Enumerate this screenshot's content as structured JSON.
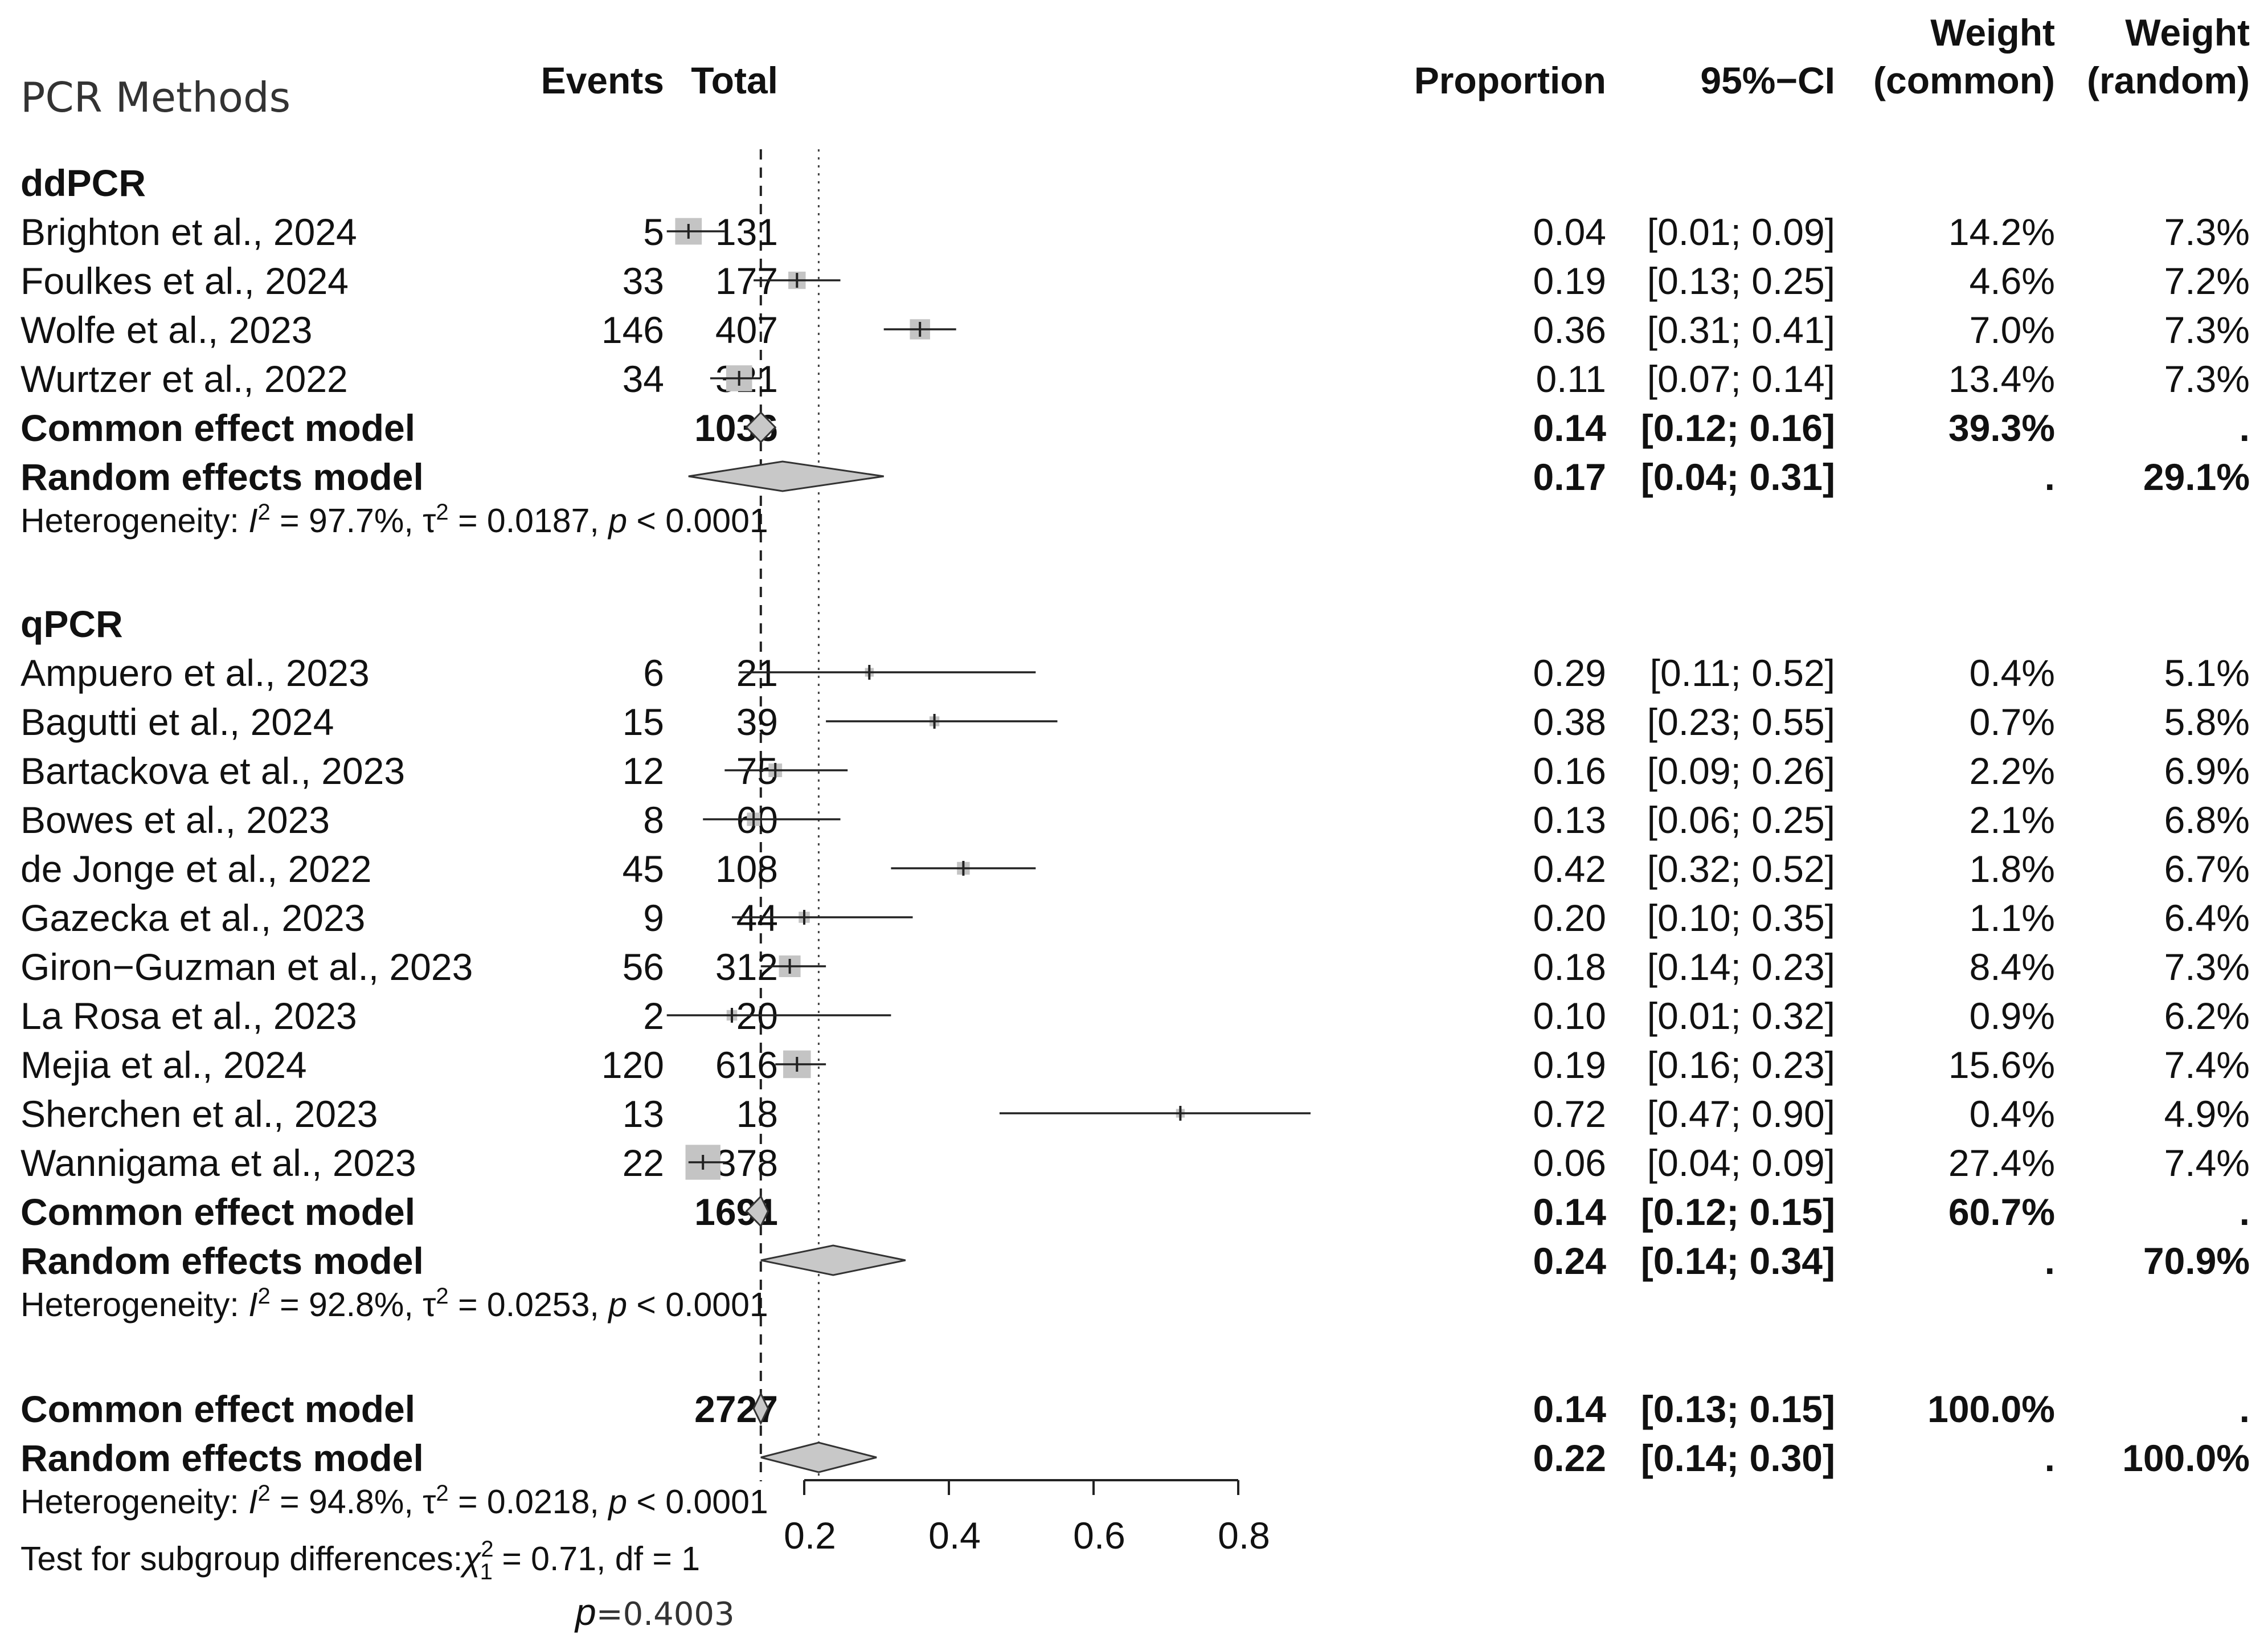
{
  "chart_data": {
    "type": "forest",
    "title": "PCR Methods",
    "columns": {
      "events": "Events",
      "total": "Total",
      "proportion": "Proportion",
      "ci": "95%−CI",
      "weight_common_1": "Weight",
      "weight_common_2": "(common)",
      "weight_random_1": "Weight",
      "weight_random_2": "(random)"
    },
    "xaxis": {
      "min": 0.2,
      "max": 0.8,
      "ticks": [
        "0.2",
        "0.4",
        "0.6",
        "0.8"
      ],
      "tick_values": [
        0.2,
        0.4,
        0.6,
        0.8
      ]
    },
    "reference_lines": {
      "common": 0.14,
      "random": 0.22
    },
    "subgroups": [
      {
        "name": "ddPCR",
        "studies": [
          {
            "study": "Brighton et al., 2024",
            "events": "5",
            "total": "131",
            "est": 0.04,
            "lo": 0.01,
            "hi": 0.09,
            "prop": "0.04",
            "ci": "[0.01; 0.09]",
            "wc": "14.2%",
            "wr": "7.3%",
            "wc_val": 14.2
          },
          {
            "study": "Foulkes et al., 2024",
            "events": "33",
            "total": "177",
            "est": 0.19,
            "lo": 0.13,
            "hi": 0.25,
            "prop": "0.19",
            "ci": "[0.13; 0.25]",
            "wc": "4.6%",
            "wr": "7.2%",
            "wc_val": 4.6
          },
          {
            "study": "Wolfe et al., 2023",
            "events": "146",
            "total": "407",
            "est": 0.36,
            "lo": 0.31,
            "hi": 0.41,
            "prop": "0.36",
            "ci": "[0.31; 0.41]",
            "wc": "7.0%",
            "wr": "7.3%",
            "wc_val": 7.0
          },
          {
            "study": "Wurtzer et al., 2022",
            "events": "34",
            "total": "321",
            "est": 0.11,
            "lo": 0.07,
            "hi": 0.14,
            "prop": "0.11",
            "ci": "[0.07; 0.14]",
            "wc": "13.4%",
            "wr": "7.3%",
            "wc_val": 13.4
          }
        ],
        "common": {
          "label": "Common effect model",
          "total": "1036",
          "est": 0.14,
          "lo": 0.12,
          "hi": 0.16,
          "prop": "0.14",
          "ci": "[0.12; 0.16]",
          "wc": "39.3%",
          "wr": "."
        },
        "random": {
          "label": "Random effects model",
          "est": 0.17,
          "lo": 0.04,
          "hi": 0.31,
          "prop": "0.17",
          "ci": "[0.04; 0.31]",
          "wc": ".",
          "wr": "29.1%"
        },
        "het": {
          "prefix": "Heterogeneity: ",
          "i2": "97.7%",
          "tau2": "0.0187",
          "p": "< 0.0001"
        }
      },
      {
        "name": "qPCR",
        "studies": [
          {
            "study": "Ampuero et al., 2023",
            "events": "6",
            "total": "21",
            "est": 0.29,
            "lo": 0.11,
            "hi": 0.52,
            "prop": "0.29",
            "ci": "[0.11; 0.52]",
            "wc": "0.4%",
            "wr": "5.1%",
            "wc_val": 0.4
          },
          {
            "study": "Bagutti et al., 2024",
            "events": "15",
            "total": "39",
            "est": 0.38,
            "lo": 0.23,
            "hi": 0.55,
            "prop": "0.38",
            "ci": "[0.23; 0.55]",
            "wc": "0.7%",
            "wr": "5.8%",
            "wc_val": 0.7
          },
          {
            "study": "Bartackova et al., 2023",
            "events": "12",
            "total": "75",
            "est": 0.16,
            "lo": 0.09,
            "hi": 0.26,
            "prop": "0.16",
            "ci": "[0.09; 0.26]",
            "wc": "2.2%",
            "wr": "6.9%",
            "wc_val": 2.2
          },
          {
            "study": "Bowes et al., 2023",
            "events": "8",
            "total": "60",
            "est": 0.13,
            "lo": 0.06,
            "hi": 0.25,
            "prop": "0.13",
            "ci": "[0.06; 0.25]",
            "wc": "2.1%",
            "wr": "6.8%",
            "wc_val": 2.1
          },
          {
            "study": "de Jonge et al., 2022",
            "events": "45",
            "total": "108",
            "est": 0.42,
            "lo": 0.32,
            "hi": 0.52,
            "prop": "0.42",
            "ci": "[0.32; 0.52]",
            "wc": "1.8%",
            "wr": "6.7%",
            "wc_val": 1.8
          },
          {
            "study": "Gazecka et al., 2023",
            "events": "9",
            "total": "44",
            "est": 0.2,
            "lo": 0.1,
            "hi": 0.35,
            "prop": "0.20",
            "ci": "[0.10; 0.35]",
            "wc": "1.1%",
            "wr": "6.4%",
            "wc_val": 1.1
          },
          {
            "study": "Giron−Guzman et al., 2023",
            "events": "56",
            "total": "312",
            "est": 0.18,
            "lo": 0.14,
            "hi": 0.23,
            "prop": "0.18",
            "ci": "[0.14; 0.23]",
            "wc": "8.4%",
            "wr": "7.3%",
            "wc_val": 8.4
          },
          {
            "study": "La Rosa et al., 2023",
            "events": "2",
            "total": "20",
            "est": 0.1,
            "lo": 0.01,
            "hi": 0.32,
            "prop": "0.10",
            "ci": "[0.01; 0.32]",
            "wc": "0.9%",
            "wr": "6.2%",
            "wc_val": 0.9
          },
          {
            "study": "Mejia et al., 2024",
            "events": "120",
            "total": "616",
            "est": 0.19,
            "lo": 0.16,
            "hi": 0.23,
            "prop": "0.19",
            "ci": "[0.16; 0.23]",
            "wc": "15.6%",
            "wr": "7.4%",
            "wc_val": 15.6
          },
          {
            "study": "Sherchen et al., 2023",
            "events": "13",
            "total": "18",
            "est": 0.72,
            "lo": 0.47,
            "hi": 0.9,
            "prop": "0.72",
            "ci": "[0.47; 0.90]",
            "wc": "0.4%",
            "wr": "4.9%",
            "wc_val": 0.4
          },
          {
            "study": "Wannigama et al., 2023",
            "events": "22",
            "total": "378",
            "est": 0.06,
            "lo": 0.04,
            "hi": 0.09,
            "prop": "0.06",
            "ci": "[0.04; 0.09]",
            "wc": "27.4%",
            "wr": "7.4%",
            "wc_val": 27.4
          }
        ],
        "common": {
          "label": "Common effect model",
          "total": "1691",
          "est": 0.14,
          "lo": 0.12,
          "hi": 0.15,
          "prop": "0.14",
          "ci": "[0.12; 0.15]",
          "wc": "60.7%",
          "wr": "."
        },
        "random": {
          "label": "Random effects model",
          "est": 0.24,
          "lo": 0.14,
          "hi": 0.34,
          "prop": "0.24",
          "ci": "[0.14; 0.34]",
          "wc": ".",
          "wr": "70.9%"
        },
        "het": {
          "prefix": "Heterogeneity: ",
          "i2": "92.8%",
          "tau2": "0.0253",
          "p": "< 0.0001"
        }
      }
    ],
    "overall": {
      "common": {
        "label": "Common effect model",
        "total": "2727",
        "est": 0.14,
        "lo": 0.13,
        "hi": 0.15,
        "prop": "0.14",
        "ci": "[0.13; 0.15]",
        "wc": "100.0%",
        "wr": "."
      },
      "random": {
        "label": "Random effects model",
        "est": 0.22,
        "lo": 0.14,
        "hi": 0.3,
        "prop": "0.22",
        "ci": "[0.14; 0.30]",
        "wc": ".",
        "wr": "100.0%"
      },
      "het": {
        "prefix": "Heterogeneity: ",
        "i2": "94.8%",
        "tau2": "0.0218",
        "p": "< 0.0001"
      },
      "subgroup_test": {
        "prefix": "Test for subgroup differences:",
        "chi2": "0.71",
        "df": "1",
        "p_label": "p",
        "p": "=0.4003"
      }
    }
  }
}
